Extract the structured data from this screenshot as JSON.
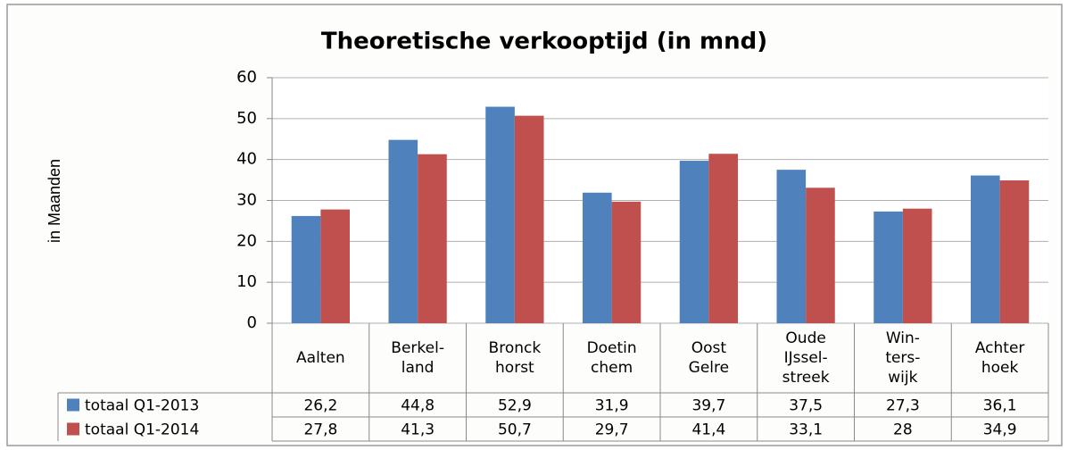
{
  "chart_data": {
    "type": "bar",
    "title": "Theoretische verkooptijd (in mnd)",
    "y_label": "in Maanden",
    "categories": [
      "Aalten",
      "Berkel-\nland",
      "Bronck\nhorst",
      "Doetin\nchem",
      "Oost\nGelre",
      "Oude\nIJssel-\nstreek",
      "Win-\nters-\nwijk",
      "Achter\nhoek"
    ],
    "series": [
      {
        "name": "totaal Q1-2013",
        "color": "#4f81bd",
        "values": [
          26.2,
          44.8,
          52.9,
          31.9,
          39.7,
          37.5,
          27.3,
          36.1
        ],
        "value_labels": [
          "26,2",
          "44,8",
          "52,9",
          "31,9",
          "39,7",
          "37,5",
          "27,3",
          "36,1"
        ]
      },
      {
        "name": "totaal Q1-2014",
        "color": "#c0504d",
        "values": [
          27.8,
          41.3,
          50.7,
          29.7,
          41.4,
          33.1,
          28,
          34.9
        ],
        "value_labels": [
          "27,8",
          "41,3",
          "50,7",
          "29,7",
          "41,4",
          "33,1",
          "28",
          "34,9"
        ]
      }
    ],
    "ylim": [
      0,
      60
    ],
    "yticks": [
      0,
      10,
      20,
      30,
      40,
      50,
      60
    ],
    "grid": true,
    "data_table": true
  }
}
